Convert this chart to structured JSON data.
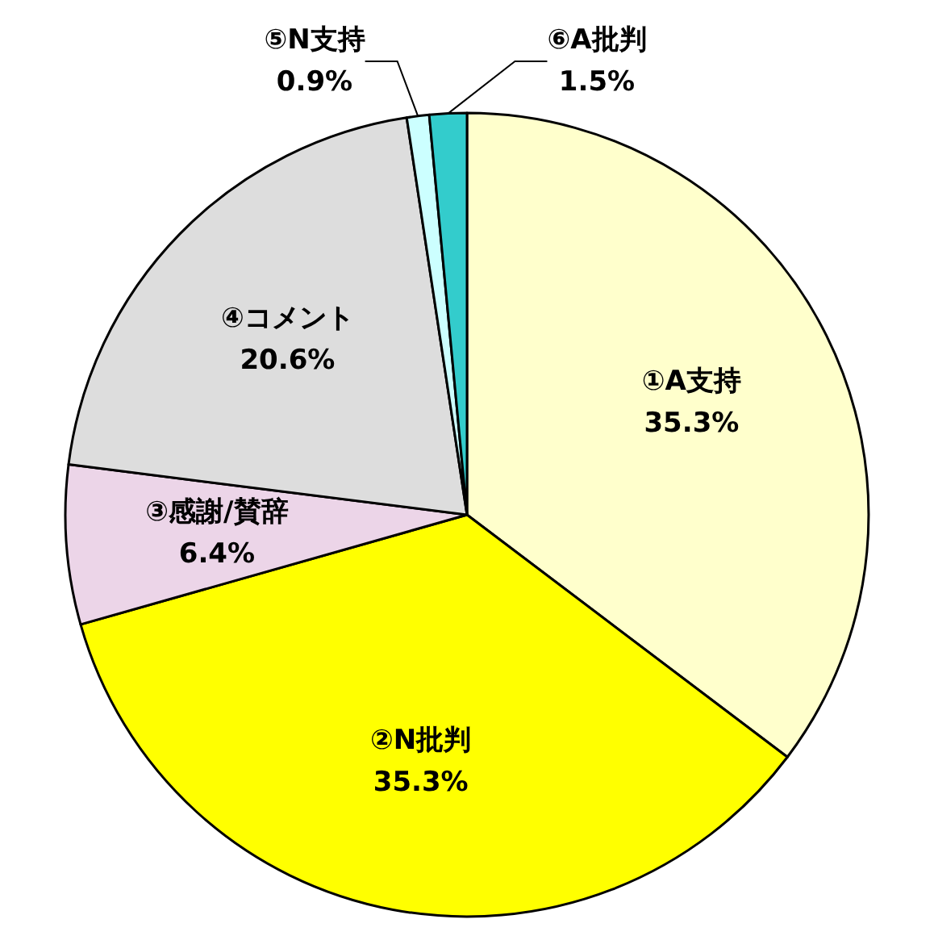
{
  "chart_data": {
    "type": "pie",
    "categories": [
      "①A支持",
      "②N批判",
      "③感謝/賛辞",
      "④コメント",
      "⑤N支持",
      "⑥A批判"
    ],
    "values": [
      35.3,
      35.3,
      6.4,
      20.6,
      0.9,
      1.5
    ],
    "value_labels": [
      "35.3%",
      "35.3%",
      "6.4%",
      "20.6%",
      "0.9%",
      "1.5%"
    ],
    "colors": [
      "#ffffcc",
      "#ffff00",
      "#ecd5e8",
      "#dddddd",
      "#ccffff",
      "#33cccc"
    ],
    "legend": false
  }
}
